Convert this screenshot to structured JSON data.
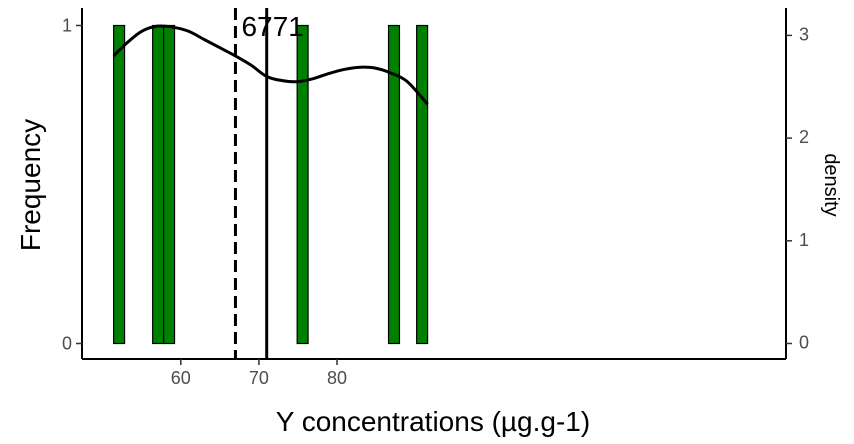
{
  "chart_data": {
    "type": "bar",
    "xlabel": "Y concentrations (µg.g-1)",
    "ylabel": "Frequency",
    "y2label": "density",
    "xlim": [
      50,
      92
    ],
    "ylim": [
      0,
      1
    ],
    "y2lim": [
      0,
      3.1
    ],
    "x_ticks": [
      60,
      70,
      80
    ],
    "y_ticks": [
      0,
      1
    ],
    "y2_ticks": [
      0,
      1,
      2,
      3
    ],
    "grid": false,
    "colors": {
      "bar": "#008000",
      "bar_outline": "#000000",
      "line": "#000000",
      "axis": "#000000"
    },
    "bars": [
      {
        "x_min": 51.4,
        "x_max": 52.8,
        "count": 1
      },
      {
        "x_min": 56.4,
        "x_max": 57.8,
        "count": 1
      },
      {
        "x_min": 57.8,
        "x_max": 59.2,
        "count": 1
      },
      {
        "x_min": 74.9,
        "x_max": 76.3,
        "count": 1
      },
      {
        "x_min": 86.6,
        "x_max": 88.0,
        "count": 1
      },
      {
        "x_min": 90.2,
        "x_max": 91.6,
        "count": 1
      }
    ],
    "density_curve": {
      "x": [
        51.4,
        53,
        55,
        57,
        59,
        61,
        63,
        65,
        67,
        69,
        71,
        73,
        75,
        77,
        79,
        81,
        83,
        85,
        87,
        89,
        91.6
      ],
      "y": [
        2.8,
        2.92,
        3.04,
        3.09,
        3.08,
        3.04,
        2.96,
        2.88,
        2.8,
        2.71,
        2.6,
        2.56,
        2.55,
        2.58,
        2.63,
        2.67,
        2.69,
        2.68,
        2.63,
        2.55,
        2.33
      ]
    },
    "vlines": [
      {
        "x": 67,
        "label": "67",
        "style": "dashed"
      },
      {
        "x": 71,
        "label": "71",
        "style": "solid"
      }
    ]
  }
}
